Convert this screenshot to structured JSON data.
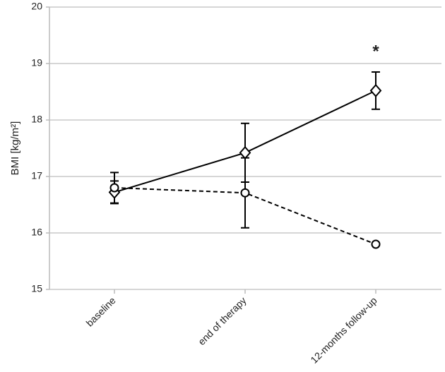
{
  "chart_data": {
    "type": "line",
    "y_label": "BMI [kg/m²]",
    "categories": [
      "baseline",
      "end of therapy",
      "12-months follow-up"
    ],
    "series": [
      {
        "color": "#000000",
        "marker": "diamond",
        "dash": false,
        "values": [
          16.72,
          17.42,
          18.52
        ],
        "errors": [
          0.2,
          0.52,
          0.33
        ]
      },
      {
        "color": "#000000",
        "marker": "circle",
        "dash": true,
        "values": [
          16.8,
          16.71,
          15.8
        ],
        "errors": [
          0.27,
          0.62,
          null
        ]
      }
    ],
    "annotations": [
      {
        "text": "*",
        "category": 2,
        "y": 19.25
      }
    ],
    "ylim": [
      15,
      20
    ],
    "yticks": [
      15,
      16,
      17,
      18,
      19,
      20
    ],
    "grid": true
  }
}
